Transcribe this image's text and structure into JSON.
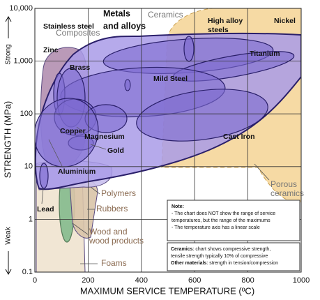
{
  "chart_data": {
    "type": "region",
    "x_label": "MAXIMUM SERVICE TEMPERATURE (ºC)",
    "y_label": "STRENGTH (MPa)",
    "y_strong": "Strong",
    "y_weak": "Weak",
    "xlim": [
      0,
      1000
    ],
    "xticks": [
      0,
      200,
      400,
      600,
      800,
      1000
    ],
    "ylim": [
      0.1,
      10000
    ],
    "yticks": [
      0.1,
      1,
      10,
      100,
      {
        "value": 1000,
        "label": "1,000"
      },
      {
        "value": 10000,
        "label": "10,000"
      }
    ],
    "ylog": true,
    "grid": true,
    "regions": [
      {
        "label": [
          "Foams"
        ],
        "color": "#efe3cf"
      },
      {
        "label": [
          "Wood and",
          "wood products"
        ],
        "color": "#8fbf94"
      },
      {
        "label": [
          "Rubbers"
        ],
        "color": "#d9c4a8"
      },
      {
        "label": [
          "Polymers"
        ],
        "color": "#c9c0ee"
      },
      {
        "label": [
          "Composites"
        ],
        "color": "#b38fb0"
      },
      {
        "label": [
          "Ceramics"
        ],
        "color": "#f5d69a"
      },
      {
        "label": [
          "Porous",
          "ceramics"
        ]
      },
      {
        "label": [
          "Metals",
          "and alloys"
        ],
        "color": "#a99be8"
      },
      {
        "label": [
          "Stainless steel"
        ],
        "color": "#7d6bd0"
      },
      {
        "label": [
          "High alloy",
          "steels"
        ],
        "color": "#7d6bd0"
      },
      {
        "label": [
          "Nickel"
        ]
      },
      {
        "label": [
          "Titanium"
        ],
        "color": "#7d6bd0"
      },
      {
        "label": [
          "Mild Steel"
        ],
        "color": "#7d6bd0"
      },
      {
        "label": [
          "Zinc"
        ],
        "color": "#7d6bd0"
      },
      {
        "label": [
          "Brass"
        ],
        "color": "#7d6bd0"
      },
      {
        "label": [
          "Copper"
        ],
        "color": "#7d6bd0"
      },
      {
        "label": [
          "Magnesium"
        ],
        "color": "#7d6bd0"
      },
      {
        "label": [
          "Gold"
        ],
        "color": "#7d6bd0"
      },
      {
        "label": [
          "Cast Iron"
        ],
        "color": "#7d6bd0"
      },
      {
        "label": [
          "Aluminium"
        ],
        "color": "#7d6bd0"
      },
      {
        "label": [
          "Lead"
        ],
        "color": "#7d6bd0"
      }
    ],
    "note": {
      "title": "Note:",
      "lines": [
        "- The chart does NOT show the range of service",
        "temperatures, but the range of the maximums",
        "- The temperature axis has a linear scale"
      ]
    },
    "footnote": {
      "lines": [
        [
          "Ceramics",
          ": chart shows compressive strength,"
        ],
        [
          "tensile strength typically 10% of compressive"
        ],
        [
          "Other materials",
          ": strength in tension/compression"
        ]
      ]
    }
  }
}
